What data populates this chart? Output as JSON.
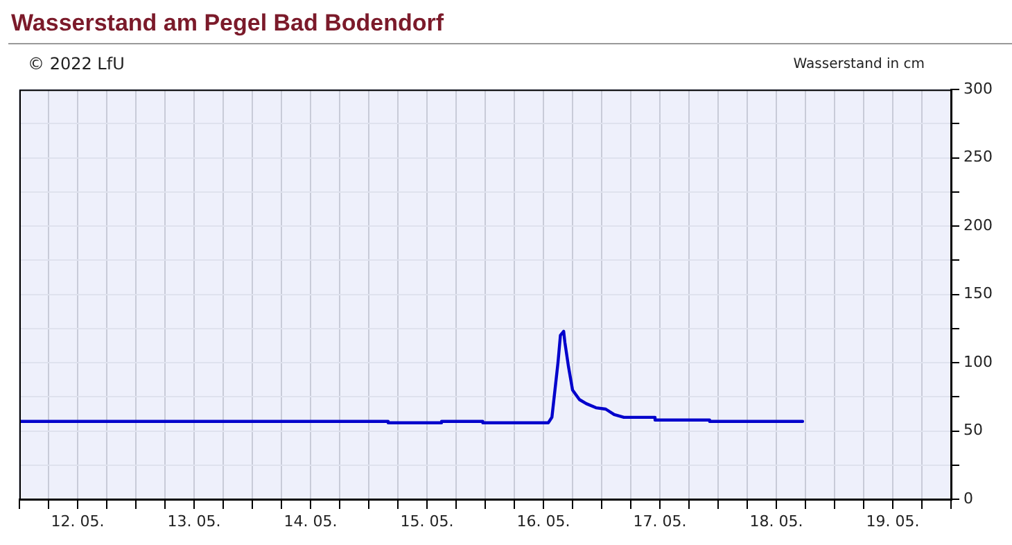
{
  "chart_data": {
    "type": "line",
    "title": "Wasserstand am Pegel Bad Bodendorf",
    "ylabel": "Wasserstand in cm",
    "annotations": [
      "© 2022 LfU"
    ],
    "x": [
      "2022-05-12T00:00",
      "2022-05-15T04:00",
      "2022-05-15T04:00",
      "2022-05-15T15:00",
      "2022-05-15T15:00",
      "2022-05-15T23:30",
      "2022-05-15T23:30",
      "2022-05-16T13:00",
      "2022-05-16T13:45",
      "2022-05-16T15:00",
      "2022-05-16T15:30",
      "2022-05-16T16:10",
      "2022-05-16T16:25",
      "2022-05-16T17:10",
      "2022-05-16T18:00",
      "2022-05-16T19:25",
      "2022-05-16T20:50",
      "2022-05-16T22:50",
      "2022-05-17T00:50",
      "2022-05-17T02:35",
      "2022-05-17T04:35",
      "2022-05-17T11:00",
      "2022-05-17T11:00",
      "2022-05-17T22:15",
      "2022-05-17T22:15",
      "2022-05-18T17:25"
    ],
    "series": [
      {
        "color": "#0000cc",
        "values": [
          57,
          57,
          56,
          56,
          57,
          57,
          56,
          56,
          60,
          100,
          120,
          123,
          115,
          97,
          80,
          73,
          70,
          67,
          66,
          62,
          60,
          60,
          58,
          58,
          57,
          57
        ]
      }
    ],
    "xlim": [
      "2022-05-12T00:00",
      "2022-05-20T00:00"
    ],
    "xticks": [
      {
        "value": "2022-05-12T00:00",
        "label": null
      },
      {
        "value": "2022-05-12T06:00",
        "label": null
      },
      {
        "value": "2022-05-12T12:00",
        "label": "12. 05."
      },
      {
        "value": "2022-05-12T18:00",
        "label": null
      },
      {
        "value": "2022-05-13T00:00",
        "label": null
      },
      {
        "value": "2022-05-13T06:00",
        "label": null
      },
      {
        "value": "2022-05-13T12:00",
        "label": "13. 05."
      },
      {
        "value": "2022-05-13T18:00",
        "label": null
      },
      {
        "value": "2022-05-14T00:00",
        "label": null
      },
      {
        "value": "2022-05-14T06:00",
        "label": null
      },
      {
        "value": "2022-05-14T12:00",
        "label": "14. 05."
      },
      {
        "value": "2022-05-14T18:00",
        "label": null
      },
      {
        "value": "2022-05-15T00:00",
        "label": null
      },
      {
        "value": "2022-05-15T06:00",
        "label": null
      },
      {
        "value": "2022-05-15T12:00",
        "label": "15. 05."
      },
      {
        "value": "2022-05-15T18:00",
        "label": null
      },
      {
        "value": "2022-05-16T00:00",
        "label": null
      },
      {
        "value": "2022-05-16T06:00",
        "label": null
      },
      {
        "value": "2022-05-16T12:00",
        "label": "16. 05."
      },
      {
        "value": "2022-05-16T18:00",
        "label": null
      },
      {
        "value": "2022-05-17T00:00",
        "label": null
      },
      {
        "value": "2022-05-17T06:00",
        "label": null
      },
      {
        "value": "2022-05-17T12:00",
        "label": "17. 05."
      },
      {
        "value": "2022-05-17T18:00",
        "label": null
      },
      {
        "value": "2022-05-18T00:00",
        "label": null
      },
      {
        "value": "2022-05-18T06:00",
        "label": null
      },
      {
        "value": "2022-05-18T12:00",
        "label": "18. 05."
      },
      {
        "value": "2022-05-18T18:00",
        "label": null
      },
      {
        "value": "2022-05-19T00:00",
        "label": null
      },
      {
        "value": "2022-05-19T06:00",
        "label": null
      },
      {
        "value": "2022-05-19T12:00",
        "label": "19. 05."
      },
      {
        "value": "2022-05-19T18:00",
        "label": null
      },
      {
        "value": "2022-05-20T00:00",
        "label": null
      }
    ],
    "ylim": [
      0,
      300
    ],
    "yticks": [
      0,
      {
        "value": 25,
        "label": null
      },
      50,
      {
        "value": 75,
        "label": null
      },
      100,
      {
        "value": 125,
        "label": null
      },
      150,
      {
        "value": 175,
        "label": null
      },
      200,
      {
        "value": 225,
        "label": null
      },
      250,
      {
        "value": 275,
        "label": null
      },
      300
    ],
    "grid": true,
    "legend": false,
    "marker": "none",
    "line_style": "solid"
  }
}
